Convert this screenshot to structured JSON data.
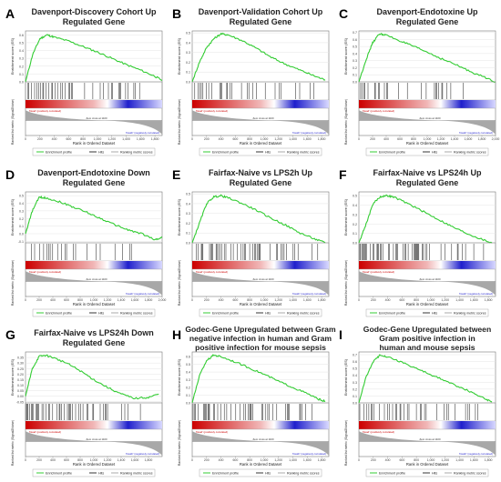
{
  "figure": {
    "shared": {
      "xlabel": "Rank in Ordered Dataset",
      "ylabel_top": "Enrichment score (ES)",
      "ylabel_bottom": "Ranked list metric (Signal2Noise)",
      "pos_label": "'Dead' (positively correlated)",
      "neg_label": "'Death' (negatively correlated)",
      "zero_cross": "Zero cross at 1100",
      "legend": [
        "Enrichment profile",
        "Hits",
        "Ranking metric scores"
      ]
    },
    "colors": {
      "es_line": "#33cc33",
      "hit": "#000000",
      "metric": "#a8a8a8",
      "pos": "#cc0000",
      "neg": "#1f1fcc"
    }
  },
  "chart_data": [
    {
      "type": "line",
      "panel": "A",
      "title": [
        "Davenport-Discovery Cohort Up",
        "Regulated Gene"
      ],
      "x": [
        0,
        100,
        200,
        300,
        400,
        600,
        800,
        1000,
        1200,
        1400,
        1600,
        1800,
        1900
      ],
      "y": [
        0,
        0.35,
        0.55,
        0.6,
        0.57,
        0.52,
        0.45,
        0.38,
        0.3,
        0.22,
        0.15,
        0.07,
        0.02
      ],
      "yticks": [
        "0.6",
        "0.5",
        "0.4",
        "0.3",
        "0.2",
        "0.1",
        "0.0"
      ],
      "ylim": [
        0,
        0.65
      ],
      "xticks": [
        "0",
        "200",
        "400",
        "600",
        "800",
        "1,000",
        "1,200",
        "1,400",
        "1,600",
        "1,800"
      ],
      "xlim": [
        0,
        1900
      ],
      "hit_density": 0.55,
      "hit_span": 0.85
    },
    {
      "type": "line",
      "panel": "B",
      "title": [
        "Davenport-Validation Cohort Up",
        "Regulated Gene"
      ],
      "x": [
        0,
        100,
        200,
        300,
        400,
        500,
        700,
        900,
        1100,
        1300,
        1500,
        1700,
        1850
      ],
      "y": [
        0,
        0.2,
        0.35,
        0.44,
        0.49,
        0.48,
        0.42,
        0.34,
        0.25,
        0.18,
        0.12,
        0.06,
        0.02
      ],
      "yticks": [
        "0.5",
        "0.4",
        "0.3",
        "0.2",
        "0.1",
        "0.0"
      ],
      "ylim": [
        0,
        0.52
      ],
      "xticks": [
        "0",
        "200",
        "400",
        "600",
        "800",
        "1,000",
        "1,200",
        "1,400",
        "1,600",
        "1,800"
      ],
      "xlim": [
        0,
        1900
      ],
      "hit_density": 0.55,
      "hit_span": 0.9
    },
    {
      "type": "line",
      "panel": "C",
      "title": [
        "Davenport-Endotoxine Up",
        "Regulated Gene"
      ],
      "x": [
        0,
        100,
        200,
        300,
        400,
        600,
        800,
        1000,
        1200,
        1400,
        1600,
        1800,
        2000
      ],
      "y": [
        0,
        0.3,
        0.55,
        0.68,
        0.66,
        0.58,
        0.5,
        0.42,
        0.33,
        0.25,
        0.16,
        0.08,
        0.0
      ],
      "yticks": [
        "0.7",
        "0.6",
        "0.5",
        "0.4",
        "0.3",
        "0.2",
        "0.1",
        "0.0"
      ],
      "ylim": [
        0,
        0.72
      ],
      "xticks": [
        "0",
        "200",
        "400",
        "600",
        "800",
        "1,000",
        "1,200",
        "1,400",
        "1,600",
        "1,800",
        "2,000"
      ],
      "xlim": [
        0,
        2000
      ],
      "hit_density": 0.4,
      "hit_span": 0.8
    },
    {
      "type": "line",
      "panel": "D",
      "title": [
        "Davenport-Endotoxine Down",
        "Regulated Gene"
      ],
      "x": [
        0,
        100,
        200,
        300,
        500,
        700,
        900,
        1100,
        1300,
        1500,
        1700,
        1900,
        2000
      ],
      "y": [
        0,
        0.3,
        0.48,
        0.47,
        0.42,
        0.35,
        0.28,
        0.2,
        0.12,
        0.05,
        0.0,
        -0.08,
        -0.05
      ],
      "yticks": [
        "0.5",
        "0.4",
        "0.3",
        "0.2",
        "0.1",
        "0.0",
        "-0.1"
      ],
      "ylim": [
        -0.12,
        0.55
      ],
      "xticks": [
        "0",
        "200",
        "400",
        "600",
        "800",
        "1,000",
        "1,200",
        "1,400",
        "1,600",
        "1,800",
        "2,000"
      ],
      "xlim": [
        0,
        2000
      ],
      "hit_density": 0.35,
      "hit_span": 0.95
    },
    {
      "type": "line",
      "panel": "E",
      "title": [
        "Fairfax-Naive vs LPS2h Up",
        "Regulated Gene"
      ],
      "x": [
        0,
        100,
        200,
        300,
        400,
        500,
        700,
        900,
        1100,
        1300,
        1500,
        1700,
        1850
      ],
      "y": [
        0,
        0.2,
        0.4,
        0.47,
        0.48,
        0.46,
        0.4,
        0.33,
        0.25,
        0.18,
        0.1,
        0.04,
        0.0
      ],
      "yticks": [
        "0.5",
        "0.4",
        "0.3",
        "0.2",
        "0.1",
        "0.0"
      ],
      "ylim": [
        0,
        0.52
      ],
      "xticks": [
        "0",
        "200",
        "400",
        "600",
        "800",
        "1,000",
        "1,200",
        "1,400",
        "1,600",
        "1,800"
      ],
      "xlim": [
        0,
        1900
      ],
      "hit_density": 0.8,
      "hit_span": 0.95
    },
    {
      "type": "line",
      "panel": "F",
      "title": [
        "Fairfax-Naive vs LPS24h Up",
        "Regulated Gene"
      ],
      "x": [
        0,
        100,
        200,
        300,
        400,
        500,
        700,
        900,
        1100,
        1300,
        1500,
        1700,
        1850
      ],
      "y": [
        0,
        0.2,
        0.42,
        0.49,
        0.5,
        0.48,
        0.41,
        0.33,
        0.25,
        0.17,
        0.1,
        0.04,
        0.0
      ],
      "yticks": [
        "0.5",
        "0.4",
        "0.3",
        "0.2",
        "0.1",
        "0.0"
      ],
      "ylim": [
        0,
        0.54
      ],
      "xticks": [
        "0",
        "200",
        "400",
        "600",
        "800",
        "1,000",
        "1,200",
        "1,400",
        "1,600",
        "1,800"
      ],
      "xlim": [
        0,
        1900
      ],
      "hit_density": 0.8,
      "hit_span": 0.95
    },
    {
      "type": "line",
      "panel": "G",
      "title": [
        "Fairfax-Naive vs LPS24h Down",
        "Regulated Gene"
      ],
      "x": [
        0,
        100,
        200,
        300,
        400,
        600,
        800,
        1000,
        1200,
        1400,
        1600,
        1800,
        1950
      ],
      "y": [
        0,
        0.25,
        0.36,
        0.37,
        0.35,
        0.3,
        0.23,
        0.15,
        0.08,
        0.02,
        -0.02,
        -0.01,
        0.02
      ],
      "yticks": [
        "0.35",
        "0.30",
        "0.25",
        "0.20",
        "0.15",
        "0.10",
        "0.05",
        "0.00",
        "-0.05"
      ],
      "ylim": [
        -0.06,
        0.4
      ],
      "xticks": [
        "0",
        "200",
        "400",
        "600",
        "800",
        "1,000",
        "1,200",
        "1,400",
        "1,600",
        "1,800"
      ],
      "xlim": [
        0,
        2000
      ],
      "hit_density": 0.75,
      "hit_span": 0.95
    },
    {
      "type": "line",
      "panel": "H",
      "title": [
        "Godec-Gene Upregulated between Gram",
        "negative infection in human and Gram",
        "positive infection for mouse sepsis"
      ],
      "x": [
        0,
        100,
        200,
        300,
        400,
        600,
        800,
        1000,
        1200,
        1400,
        1600,
        1750,
        1850
      ],
      "y": [
        0,
        0.35,
        0.55,
        0.62,
        0.6,
        0.53,
        0.45,
        0.37,
        0.28,
        0.2,
        0.12,
        0.05,
        0.02
      ],
      "yticks": [
        "0.6",
        "0.5",
        "0.4",
        "0.3",
        "0.2",
        "0.1",
        "0.0"
      ],
      "ylim": [
        0,
        0.66
      ],
      "xticks": [
        "0",
        "200",
        "400",
        "600",
        "800",
        "1,000",
        "1,200",
        "1,400",
        "1,600",
        "1,800"
      ],
      "xlim": [
        0,
        1900
      ],
      "hit_density": 0.65,
      "hit_span": 0.9
    },
    {
      "type": "line",
      "panel": "I",
      "title": [
        "Godec-Gene Upregulated between",
        "Gram positive infection in",
        "human and mouse sepsis"
      ],
      "x": [
        0,
        100,
        200,
        300,
        400,
        600,
        800,
        1000,
        1200,
        1400,
        1600,
        1750,
        1850
      ],
      "y": [
        0,
        0.38,
        0.6,
        0.7,
        0.67,
        0.59,
        0.5,
        0.41,
        0.32,
        0.23,
        0.14,
        0.06,
        0.02
      ],
      "yticks": [
        "0.7",
        "0.6",
        "0.5",
        "0.4",
        "0.3",
        "0.2",
        "0.1",
        "0.0"
      ],
      "ylim": [
        0,
        0.74
      ],
      "xticks": [
        "0",
        "200",
        "400",
        "600",
        "800",
        "1,000",
        "1,200",
        "1,400",
        "1,600",
        "1,800"
      ],
      "xlim": [
        0,
        1900
      ],
      "hit_density": 0.65,
      "hit_span": 0.9
    }
  ]
}
